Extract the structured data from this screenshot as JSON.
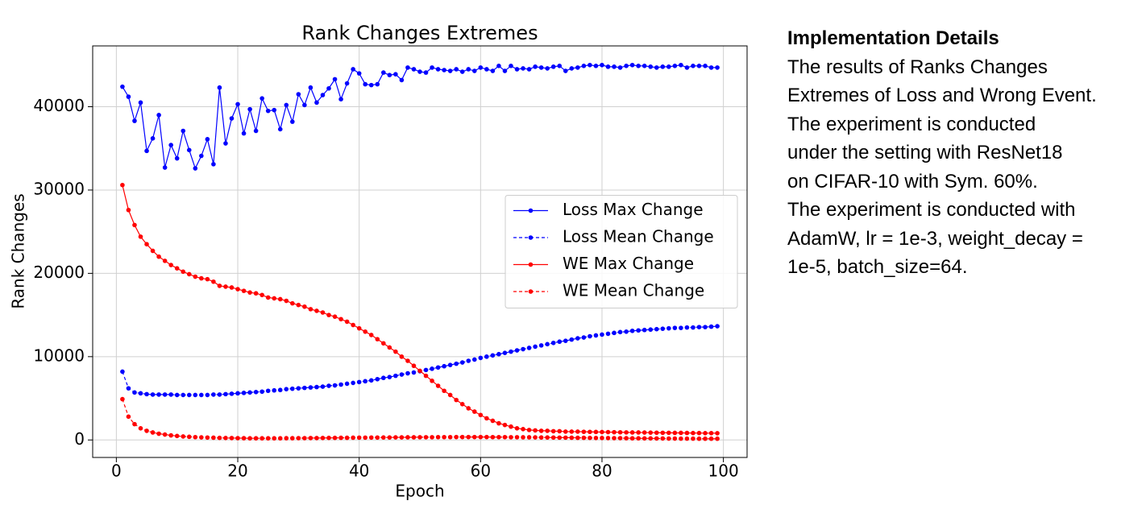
{
  "chart_data": {
    "type": "line",
    "title": "Rank Changes Extremes",
    "x_label": "Epoch",
    "y_label": "Rank Changes",
    "x": [
      1,
      2,
      3,
      4,
      5,
      6,
      7,
      8,
      9,
      10,
      11,
      12,
      13,
      14,
      15,
      16,
      17,
      18,
      19,
      20,
      21,
      22,
      23,
      24,
      25,
      26,
      27,
      28,
      29,
      30,
      31,
      32,
      33,
      34,
      35,
      36,
      37,
      38,
      39,
      40,
      41,
      42,
      43,
      44,
      45,
      46,
      47,
      48,
      49,
      50,
      51,
      52,
      53,
      54,
      55,
      56,
      57,
      58,
      59,
      60,
      61,
      62,
      63,
      64,
      65,
      66,
      67,
      68,
      69,
      70,
      71,
      72,
      73,
      74,
      75,
      76,
      77,
      78,
      79,
      80,
      81,
      82,
      83,
      84,
      85,
      86,
      87,
      88,
      89,
      90,
      91,
      92,
      93,
      94,
      95,
      96,
      97,
      98,
      99
    ],
    "series": [
      {
        "name": "Loss Max Change",
        "color": "#0000ff",
        "linestyle": "solid",
        "values": [
          42400,
          41200,
          38300,
          40500,
          34700,
          36200,
          39000,
          32700,
          35400,
          33800,
          37100,
          34800,
          32600,
          34100,
          36100,
          33100,
          42300,
          35600,
          38600,
          40300,
          36800,
          39700,
          37100,
          41000,
          39500,
          39600,
          37300,
          40200,
          38200,
          41500,
          40200,
          42300,
          40500,
          41400,
          42200,
          43300,
          40900,
          42800,
          44500,
          44000,
          42700,
          42600,
          42700,
          44100,
          43800,
          43900,
          43200,
          44700,
          44500,
          44200,
          44100,
          44700,
          44500,
          44400,
          44300,
          44500,
          44200,
          44500,
          44300,
          44700,
          44500,
          44300,
          44900,
          44300,
          44900,
          44500,
          44600,
          44500,
          44800,
          44700,
          44600,
          44800,
          44900,
          44300,
          44600,
          44700,
          44900,
          45000,
          44900,
          45000,
          44800,
          44800,
          44700,
          44900,
          45000,
          44900,
          44900,
          44800,
          44700,
          44800,
          44800,
          44900,
          45000,
          44700,
          44900,
          44900,
          44900,
          44700,
          44700
        ]
      },
      {
        "name": "Loss Mean Change",
        "color": "#0000ff",
        "linestyle": "dashed",
        "values": [
          8200,
          6200,
          5700,
          5600,
          5500,
          5450,
          5450,
          5450,
          5450,
          5400,
          5400,
          5400,
          5400,
          5400,
          5400,
          5450,
          5450,
          5500,
          5550,
          5600,
          5650,
          5700,
          5750,
          5800,
          5900,
          5950,
          6000,
          6100,
          6150,
          6200,
          6250,
          6300,
          6350,
          6400,
          6500,
          6550,
          6650,
          6750,
          6850,
          6950,
          7050,
          7150,
          7300,
          7450,
          7550,
          7700,
          7850,
          8000,
          8100,
          8250,
          8400,
          8550,
          8700,
          8850,
          9000,
          9150,
          9300,
          9500,
          9650,
          9850,
          10000,
          10150,
          10300,
          10450,
          10600,
          10750,
          10900,
          11050,
          11200,
          11350,
          11500,
          11650,
          11800,
          11900,
          12050,
          12200,
          12300,
          12450,
          12550,
          12650,
          12750,
          12850,
          12950,
          13000,
          13100,
          13150,
          13200,
          13250,
          13300,
          13350,
          13400,
          13450,
          13450,
          13500,
          13500,
          13550,
          13550,
          13600,
          13650
        ]
      },
      {
        "name": "WE Max Change",
        "color": "#ff0000",
        "linestyle": "solid",
        "values": [
          30600,
          27600,
          25800,
          24400,
          23500,
          22700,
          22000,
          21500,
          21000,
          20600,
          20200,
          19900,
          19600,
          19400,
          19300,
          19000,
          18500,
          18400,
          18300,
          18100,
          17900,
          17700,
          17600,
          17400,
          17100,
          17000,
          16900,
          16700,
          16400,
          16200,
          16000,
          15700,
          15500,
          15300,
          15000,
          14800,
          14500,
          14200,
          13800,
          13400,
          13000,
          12600,
          12100,
          11600,
          11100,
          10600,
          10000,
          9500,
          8900,
          8300,
          7700,
          7100,
          6500,
          5900,
          5400,
          4800,
          4300,
          3800,
          3400,
          3000,
          2600,
          2300,
          2000,
          1800,
          1600,
          1400,
          1300,
          1200,
          1150,
          1100,
          1100,
          1050,
          1050,
          1000,
          1000,
          1000,
          980,
          970,
          960,
          950,
          940,
          930,
          920,
          910,
          900,
          900,
          890,
          880,
          870,
          860,
          860,
          850,
          850,
          840,
          830,
          830,
          820,
          820,
          810
        ]
      },
      {
        "name": "WE Mean Change",
        "color": "#ff0000",
        "linestyle": "dashed",
        "values": [
          4900,
          2800,
          1900,
          1400,
          1100,
          900,
          750,
          650,
          550,
          480,
          420,
          380,
          340,
          310,
          290,
          270,
          250,
          240,
          230,
          220,
          210,
          200,
          200,
          200,
          200,
          200,
          200,
          210,
          210,
          220,
          220,
          230,
          230,
          240,
          250,
          250,
          260,
          260,
          270,
          280,
          280,
          290,
          290,
          300,
          300,
          310,
          310,
          320,
          320,
          330,
          330,
          330,
          340,
          340,
          340,
          350,
          350,
          350,
          350,
          350,
          350,
          340,
          340,
          340,
          330,
          330,
          320,
          320,
          310,
          300,
          300,
          290,
          280,
          280,
          270,
          260,
          260,
          250,
          240,
          240,
          230,
          220,
          220,
          210,
          200,
          200,
          190,
          190,
          180,
          180,
          170,
          170,
          160,
          160,
          160,
          150,
          150,
          150,
          150
        ]
      }
    ],
    "xlim": [
      -3.9,
      103.9
    ],
    "ylim": [
      -2100,
      47300
    ],
    "xticks": [
      0,
      20,
      40,
      60,
      80,
      100
    ],
    "yticks": [
      0,
      10000,
      20000,
      30000,
      40000
    ],
    "grid": true,
    "legend": "center right"
  },
  "panel": {
    "title": "Implementation Details",
    "lines": [
      "The results of Ranks Changes",
      "Extremes of Loss and Wrong Event.",
      "The experiment is conducted",
      "under the setting with ResNet18",
      "on CIFAR-10 with Sym. 60%.",
      "The experiment is conducted with",
      "AdamW, lr = 1e-3, weight_decay =",
      "1e-5, batch_size=64."
    ]
  }
}
